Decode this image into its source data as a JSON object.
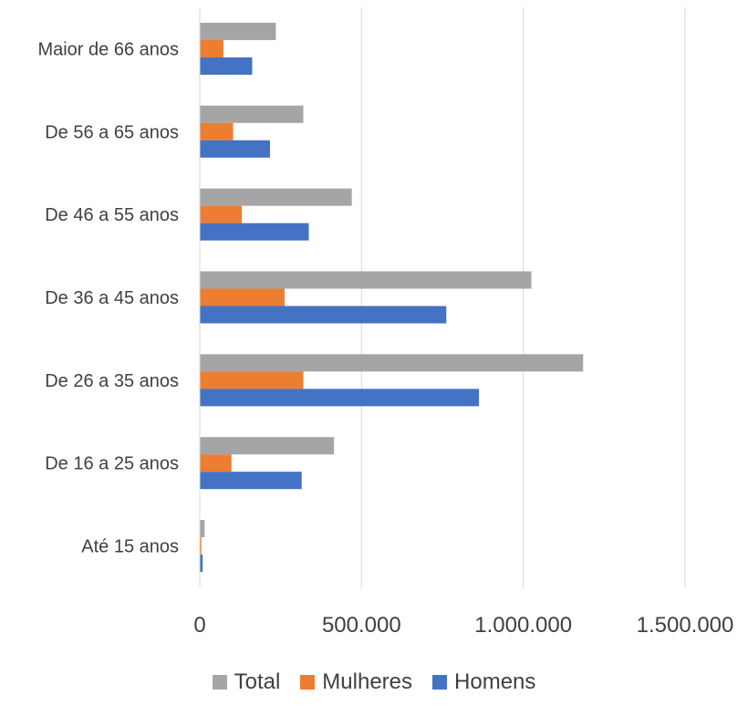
{
  "chart_data": {
    "type": "bar",
    "orientation": "horizontal",
    "categories": [
      "Até 15 anos",
      "De 16 a 25 anos",
      "De 26 a 35 anos",
      "De 36 a 45 anos",
      "De 46 a 55 anos",
      "De 56 a 65 anos",
      "Maior de 66 anos"
    ],
    "series": [
      {
        "name": "Total",
        "color": "#a5a5a5",
        "values": [
          15000,
          415000,
          1185000,
          1025000,
          470000,
          320000,
          235000
        ]
      },
      {
        "name": "Mulheres",
        "color": "#ed7d31",
        "values": [
          5000,
          98000,
          320000,
          262000,
          130000,
          103000,
          73000
        ]
      },
      {
        "name": "Homens",
        "color": "#4472c4",
        "values": [
          9000,
          315000,
          863000,
          762000,
          337000,
          217000,
          162000
        ]
      }
    ],
    "xlim": [
      0,
      1500000
    ],
    "xticks": [
      0,
      500000,
      1000000,
      1500000
    ],
    "xtick_labels": [
      "0",
      "500.000",
      "1.000.000",
      "1.500.000"
    ],
    "grid": true,
    "legend": {
      "position": "bottom",
      "order": [
        "Total",
        "Mulheres",
        "Homens"
      ]
    },
    "title": "",
    "xlabel": "",
    "ylabel": ""
  }
}
